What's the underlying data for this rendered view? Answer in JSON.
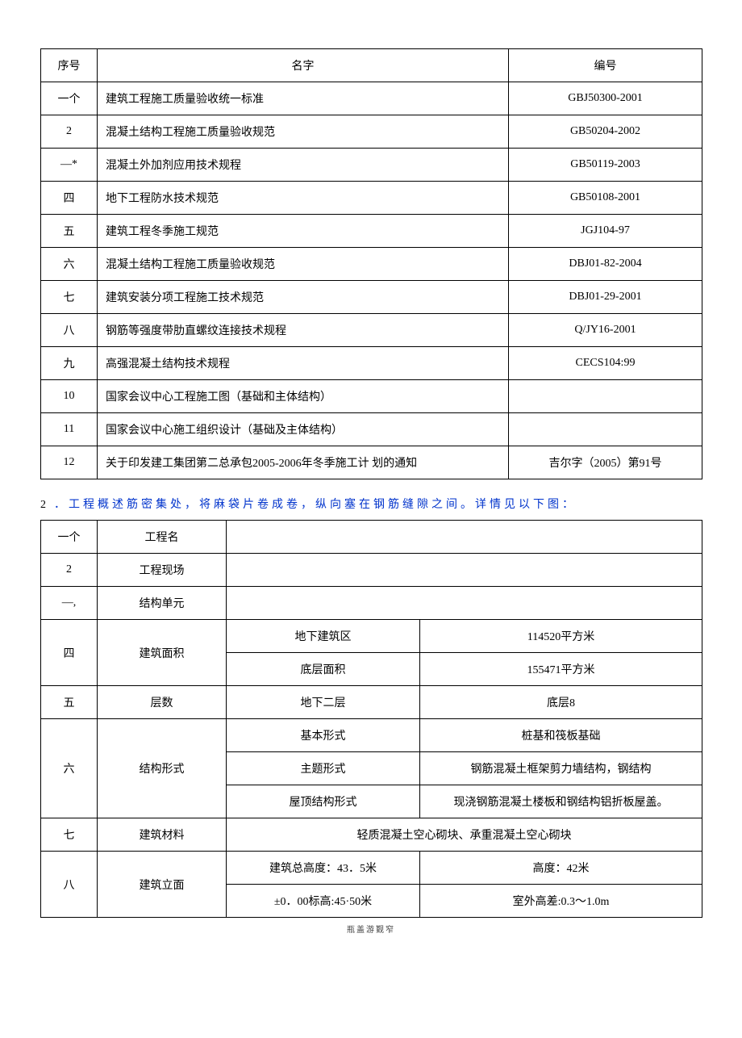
{
  "table1": {
    "headers": [
      "序号",
      "名字",
      "编号"
    ],
    "rows": [
      {
        "seq": "一个",
        "name": "建筑工程施工质量验收统一标准",
        "code": "GBJ50300-2001"
      },
      {
        "seq": "2",
        "name": "混凝土结构工程施工质量验收规范",
        "code": "GB50204-2002"
      },
      {
        "seq": "—*",
        "name": "混凝土外加剂应用技术规程",
        "code": "GB50119-2003"
      },
      {
        "seq": "四",
        "name": "地下工程防水技术规范",
        "code": "GB50108-2001"
      },
      {
        "seq": "五",
        "name": "建筑工程冬季施工规范",
        "code": "JGJ104-97"
      },
      {
        "seq": "六",
        "name": "混凝土结构工程施工质量验收规范",
        "code": "DBJ01-82-2004"
      },
      {
        "seq": "七",
        "name": "建筑安装分项工程施工技术规范",
        "code": "DBJ01-29-2001"
      },
      {
        "seq": "八",
        "name": "钢筋等强度带肋直螺纹连接技术规程",
        "code": "Q/JY16-2001"
      },
      {
        "seq": "九",
        "name": "高强混凝土结构技术规程",
        "code": "CECS104:99"
      },
      {
        "seq": "10",
        "name": "国家会议中心工程施工图（基础和主体结构）",
        "code": ""
      },
      {
        "seq": "11",
        "name": "国家会议中心施工组织设计（基础及主体结构）",
        "code": ""
      },
      {
        "seq": "12",
        "name": "关于印发建工集团第二总承包2005-2006年冬季施工计 划的通知",
        "code": "吉尔字（2005）第91号"
      }
    ]
  },
  "section2_number": "2",
  "section2_title": "．工程概述筋密集处，将麻袋片卷成卷，纵向塞在钢筋缝隙之间。详情见以下图：",
  "table2": {
    "r1": {
      "seq": "一个",
      "label": "工程名"
    },
    "r2": {
      "seq": "2",
      "label": "工程现场"
    },
    "r3": {
      "seq": "—,",
      "label": "结构单元"
    },
    "r4": {
      "seq": "四",
      "label": "建筑面积",
      "sub1_label": "地下建筑区",
      "sub1_value": "114520平方米",
      "sub2_label": "底层面积",
      "sub2_value": "155471平方米"
    },
    "r5": {
      "seq": "五",
      "label": "层数",
      "sub_label": "地下二层",
      "sub_value": "底层8"
    },
    "r6": {
      "seq": "六",
      "label": "结构形式",
      "sub1_label": "基本形式",
      "sub1_value": "桩基和筏板基础",
      "sub2_label": "主题形式",
      "sub2_value": "钢筋混凝土框架剪力墙结构，钢结构",
      "sub3_label": "屋顶结构形式",
      "sub3_value": "现浇钢筋混凝土楼板和钢结构铝折板屋盖。"
    },
    "r7": {
      "seq": "七",
      "label": "建筑材料",
      "value": "轻质混凝土空心砌块、承重混凝土空心砌块"
    },
    "r8": {
      "seq": "八",
      "label": "建筑立面",
      "sub1_label": "建筑总高度：43．5米",
      "sub1_value": "高度：42米",
      "sub2_label": "±0．00标高:45·50米",
      "sub2_value": "室外高差:0.3〜1.0m"
    }
  },
  "footer": "瓶盖游觐窄"
}
